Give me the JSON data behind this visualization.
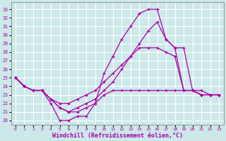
{
  "xlabel": "Windchill (Refroidissement éolien,°C)",
  "bg_color": "#cce8e8",
  "grid_color": "#ffffff",
  "line_color": "#aa00aa",
  "x_ticks": [
    0,
    1,
    2,
    3,
    4,
    5,
    6,
    7,
    8,
    9,
    10,
    11,
    12,
    13,
    14,
    15,
    16,
    17,
    18,
    19,
    20,
    21,
    22,
    23
  ],
  "y_ticks": [
    20,
    21,
    22,
    23,
    24,
    25,
    26,
    27,
    28,
    29,
    30,
    31,
    32,
    33
  ],
  "ylim": [
    19.5,
    33.8
  ],
  "xlim": [
    -0.5,
    23.5
  ],
  "series": [
    [
      25.0,
      24.0,
      23.5,
      23.5,
      22.0,
      20.0,
      20.0,
      20.5,
      20.5,
      22.0,
      25.5,
      27.5,
      29.5,
      31.0,
      32.5,
      33.0,
      33.0,
      29.5,
      28.5,
      28.5,
      23.5,
      23.5,
      23.0,
      23.0
    ],
    [
      25.0,
      24.0,
      23.5,
      23.5,
      22.5,
      21.5,
      21.0,
      21.0,
      21.5,
      22.0,
      23.0,
      23.5,
      23.5,
      23.5,
      23.5,
      23.5,
      23.5,
      23.5,
      23.5,
      23.5,
      23.5,
      23.0,
      23.0,
      23.0
    ],
    [
      25.0,
      24.0,
      23.5,
      23.5,
      22.5,
      21.5,
      21.0,
      21.5,
      22.0,
      22.5,
      23.5,
      24.5,
      26.0,
      27.5,
      29.0,
      30.5,
      31.5,
      29.5,
      28.5,
      23.5,
      23.5,
      23.0,
      23.0,
      23.0
    ],
    [
      25.0,
      24.0,
      23.5,
      23.5,
      22.5,
      22.0,
      22.0,
      22.5,
      23.0,
      23.5,
      24.5,
      25.5,
      26.5,
      27.5,
      28.5,
      28.5,
      28.5,
      28.0,
      27.5,
      23.5,
      23.5,
      23.0,
      23.0,
      23.0
    ]
  ]
}
